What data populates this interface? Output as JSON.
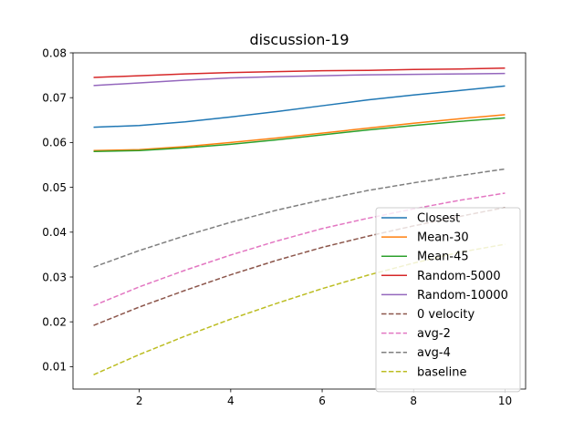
{
  "chart_data": {
    "type": "line",
    "title": "discussion-19",
    "xlabel": "",
    "ylabel": "",
    "xlim": [
      0.55,
      10.45
    ],
    "ylim": [
      0.005,
      0.08
    ],
    "x_ticks": [
      2,
      4,
      6,
      8,
      10
    ],
    "x_tick_labels": [
      "2",
      "4",
      "6",
      "8",
      "10"
    ],
    "y_ticks": [
      0.01,
      0.02,
      0.03,
      0.04,
      0.05,
      0.06,
      0.07,
      0.08
    ],
    "y_tick_labels": [
      "0.01",
      "0.02",
      "0.03",
      "0.04",
      "0.05",
      "0.06",
      "0.07",
      "0.08"
    ],
    "grid": false,
    "legend_position": "lower-right",
    "x": [
      1,
      2,
      3,
      4,
      5,
      6,
      7,
      8,
      9,
      10
    ],
    "series": [
      {
        "name": "Closest",
        "color": "#1f77b4",
        "dash": "solid",
        "values": [
          0.0634,
          0.0638,
          0.0646,
          0.0657,
          0.0669,
          0.0682,
          0.0695,
          0.0706,
          0.0716,
          0.0726
        ]
      },
      {
        "name": "Mean-30",
        "color": "#ff7f0e",
        "dash": "solid",
        "values": [
          0.0582,
          0.0584,
          0.0591,
          0.06,
          0.061,
          0.0621,
          0.0632,
          0.0643,
          0.0653,
          0.0662
        ]
      },
      {
        "name": "Mean-45",
        "color": "#2ca02c",
        "dash": "solid",
        "values": [
          0.058,
          0.0582,
          0.0588,
          0.0596,
          0.0606,
          0.0617,
          0.0628,
          0.0638,
          0.0647,
          0.0655
        ]
      },
      {
        "name": "Random-5000",
        "color": "#d62728",
        "dash": "solid",
        "values": [
          0.0745,
          0.0749,
          0.0753,
          0.0756,
          0.0758,
          0.076,
          0.0761,
          0.0763,
          0.0764,
          0.0766
        ]
      },
      {
        "name": "Random-10000",
        "color": "#9467bd",
        "dash": "solid",
        "values": [
          0.0727,
          0.0733,
          0.0739,
          0.0744,
          0.0747,
          0.0749,
          0.0751,
          0.0752,
          0.0753,
          0.0754
        ]
      },
      {
        "name": "0 velocity",
        "color": "#8c564b",
        "dash": "dashed",
        "values": [
          0.0192,
          0.0233,
          0.027,
          0.0305,
          0.0337,
          0.0366,
          0.0391,
          0.0414,
          0.0435,
          0.0455
        ]
      },
      {
        "name": "avg-2",
        "color": "#e377c2",
        "dash": "dashed",
        "values": [
          0.0236,
          0.0278,
          0.0315,
          0.0349,
          0.038,
          0.0408,
          0.0431,
          0.0452,
          0.0471,
          0.0487
        ]
      },
      {
        "name": "avg-4",
        "color": "#7f7f7f",
        "dash": "dashed",
        "values": [
          0.0322,
          0.0359,
          0.0392,
          0.0422,
          0.0449,
          0.0472,
          0.0493,
          0.051,
          0.0526,
          0.0541
        ]
      },
      {
        "name": "baseline",
        "color": "#bcbd22",
        "dash": "dashed",
        "values": [
          0.0082,
          0.0127,
          0.0168,
          0.0206,
          0.0241,
          0.0274,
          0.0304,
          0.0331,
          0.0355,
          0.0373
        ]
      }
    ]
  }
}
